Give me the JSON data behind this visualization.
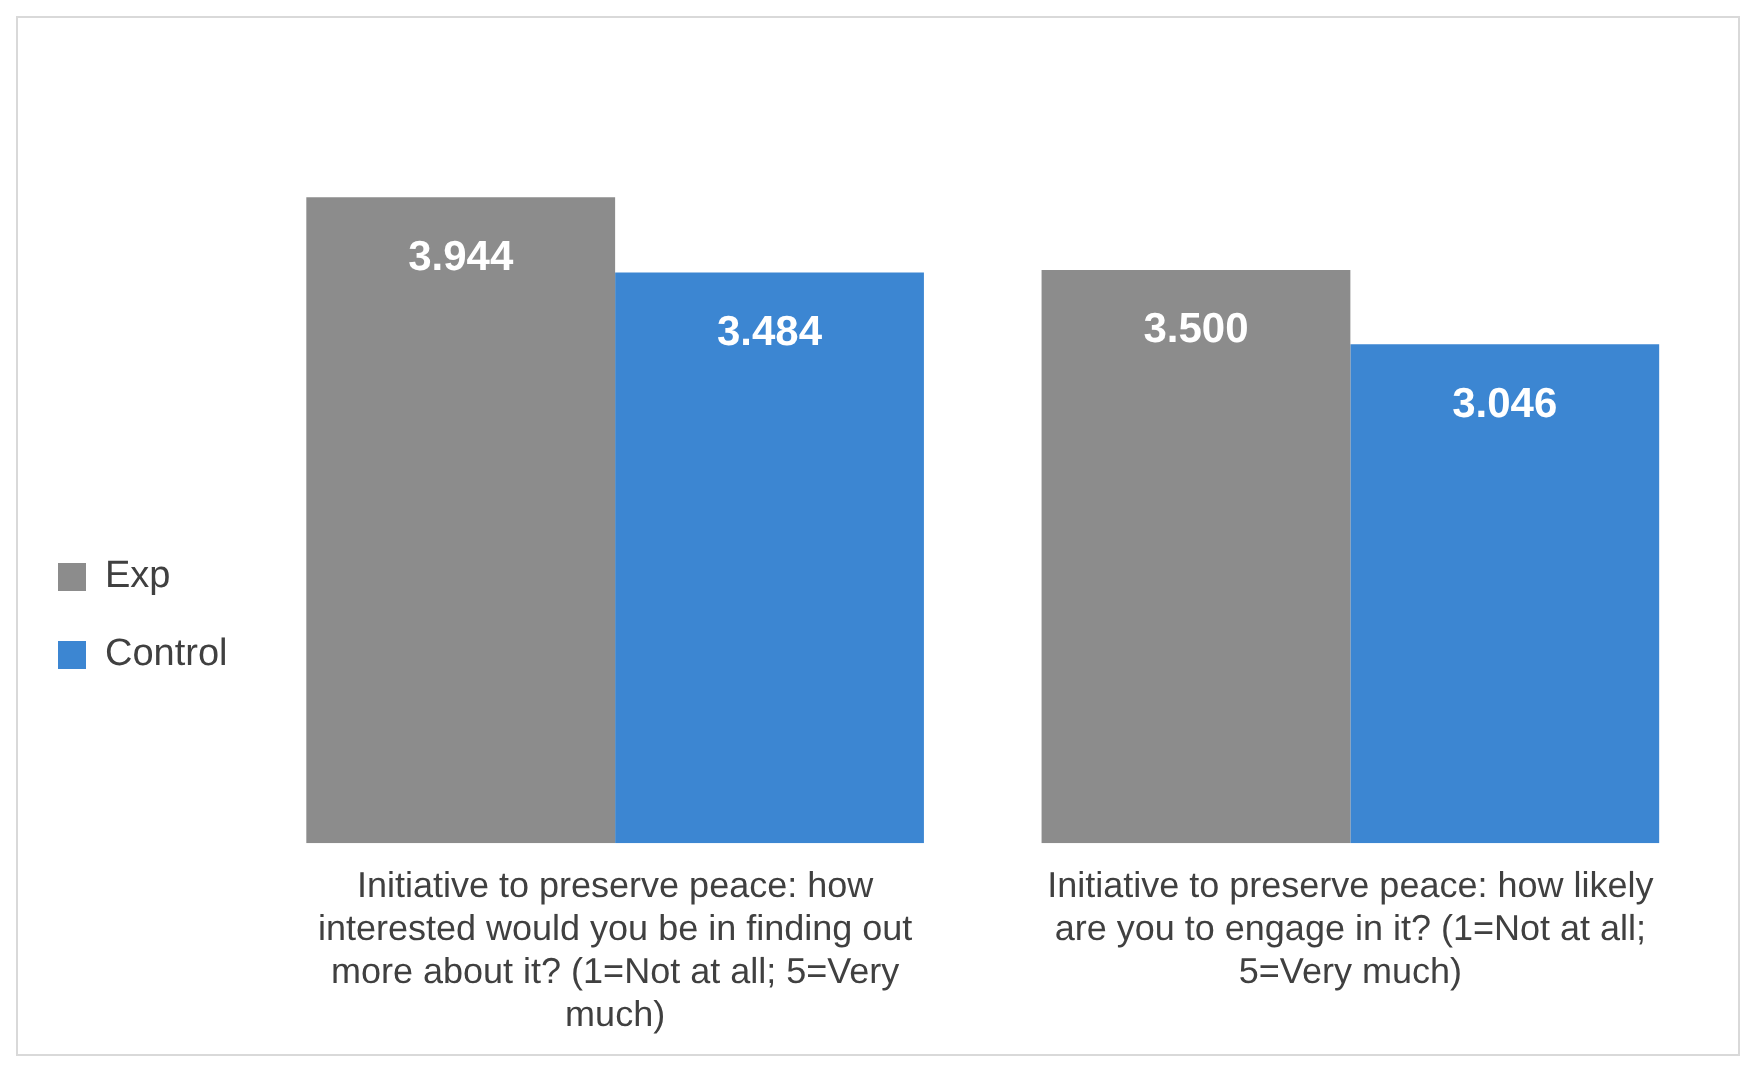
{
  "chart_data": {
    "type": "bar",
    "categories": [
      "Initiative to preserve peace: how interested would you be in finding out more about it? (1=Not at all; 5=Very much)",
      "Initiative to preserve peace: how likely are you to engage in it? (1=Not at all; 5=Very much)"
    ],
    "series": [
      {
        "name": "Exp",
        "color": "#8c8c8c",
        "values": [
          3.944,
          3.5
        ],
        "value_labels": [
          "3.944",
          "3.500"
        ]
      },
      {
        "name": "Control",
        "color": "#3c86d2",
        "values": [
          3.484,
          3.046
        ],
        "value_labels": [
          "3.484",
          "3.046"
        ]
      }
    ],
    "legend": "left"
  }
}
